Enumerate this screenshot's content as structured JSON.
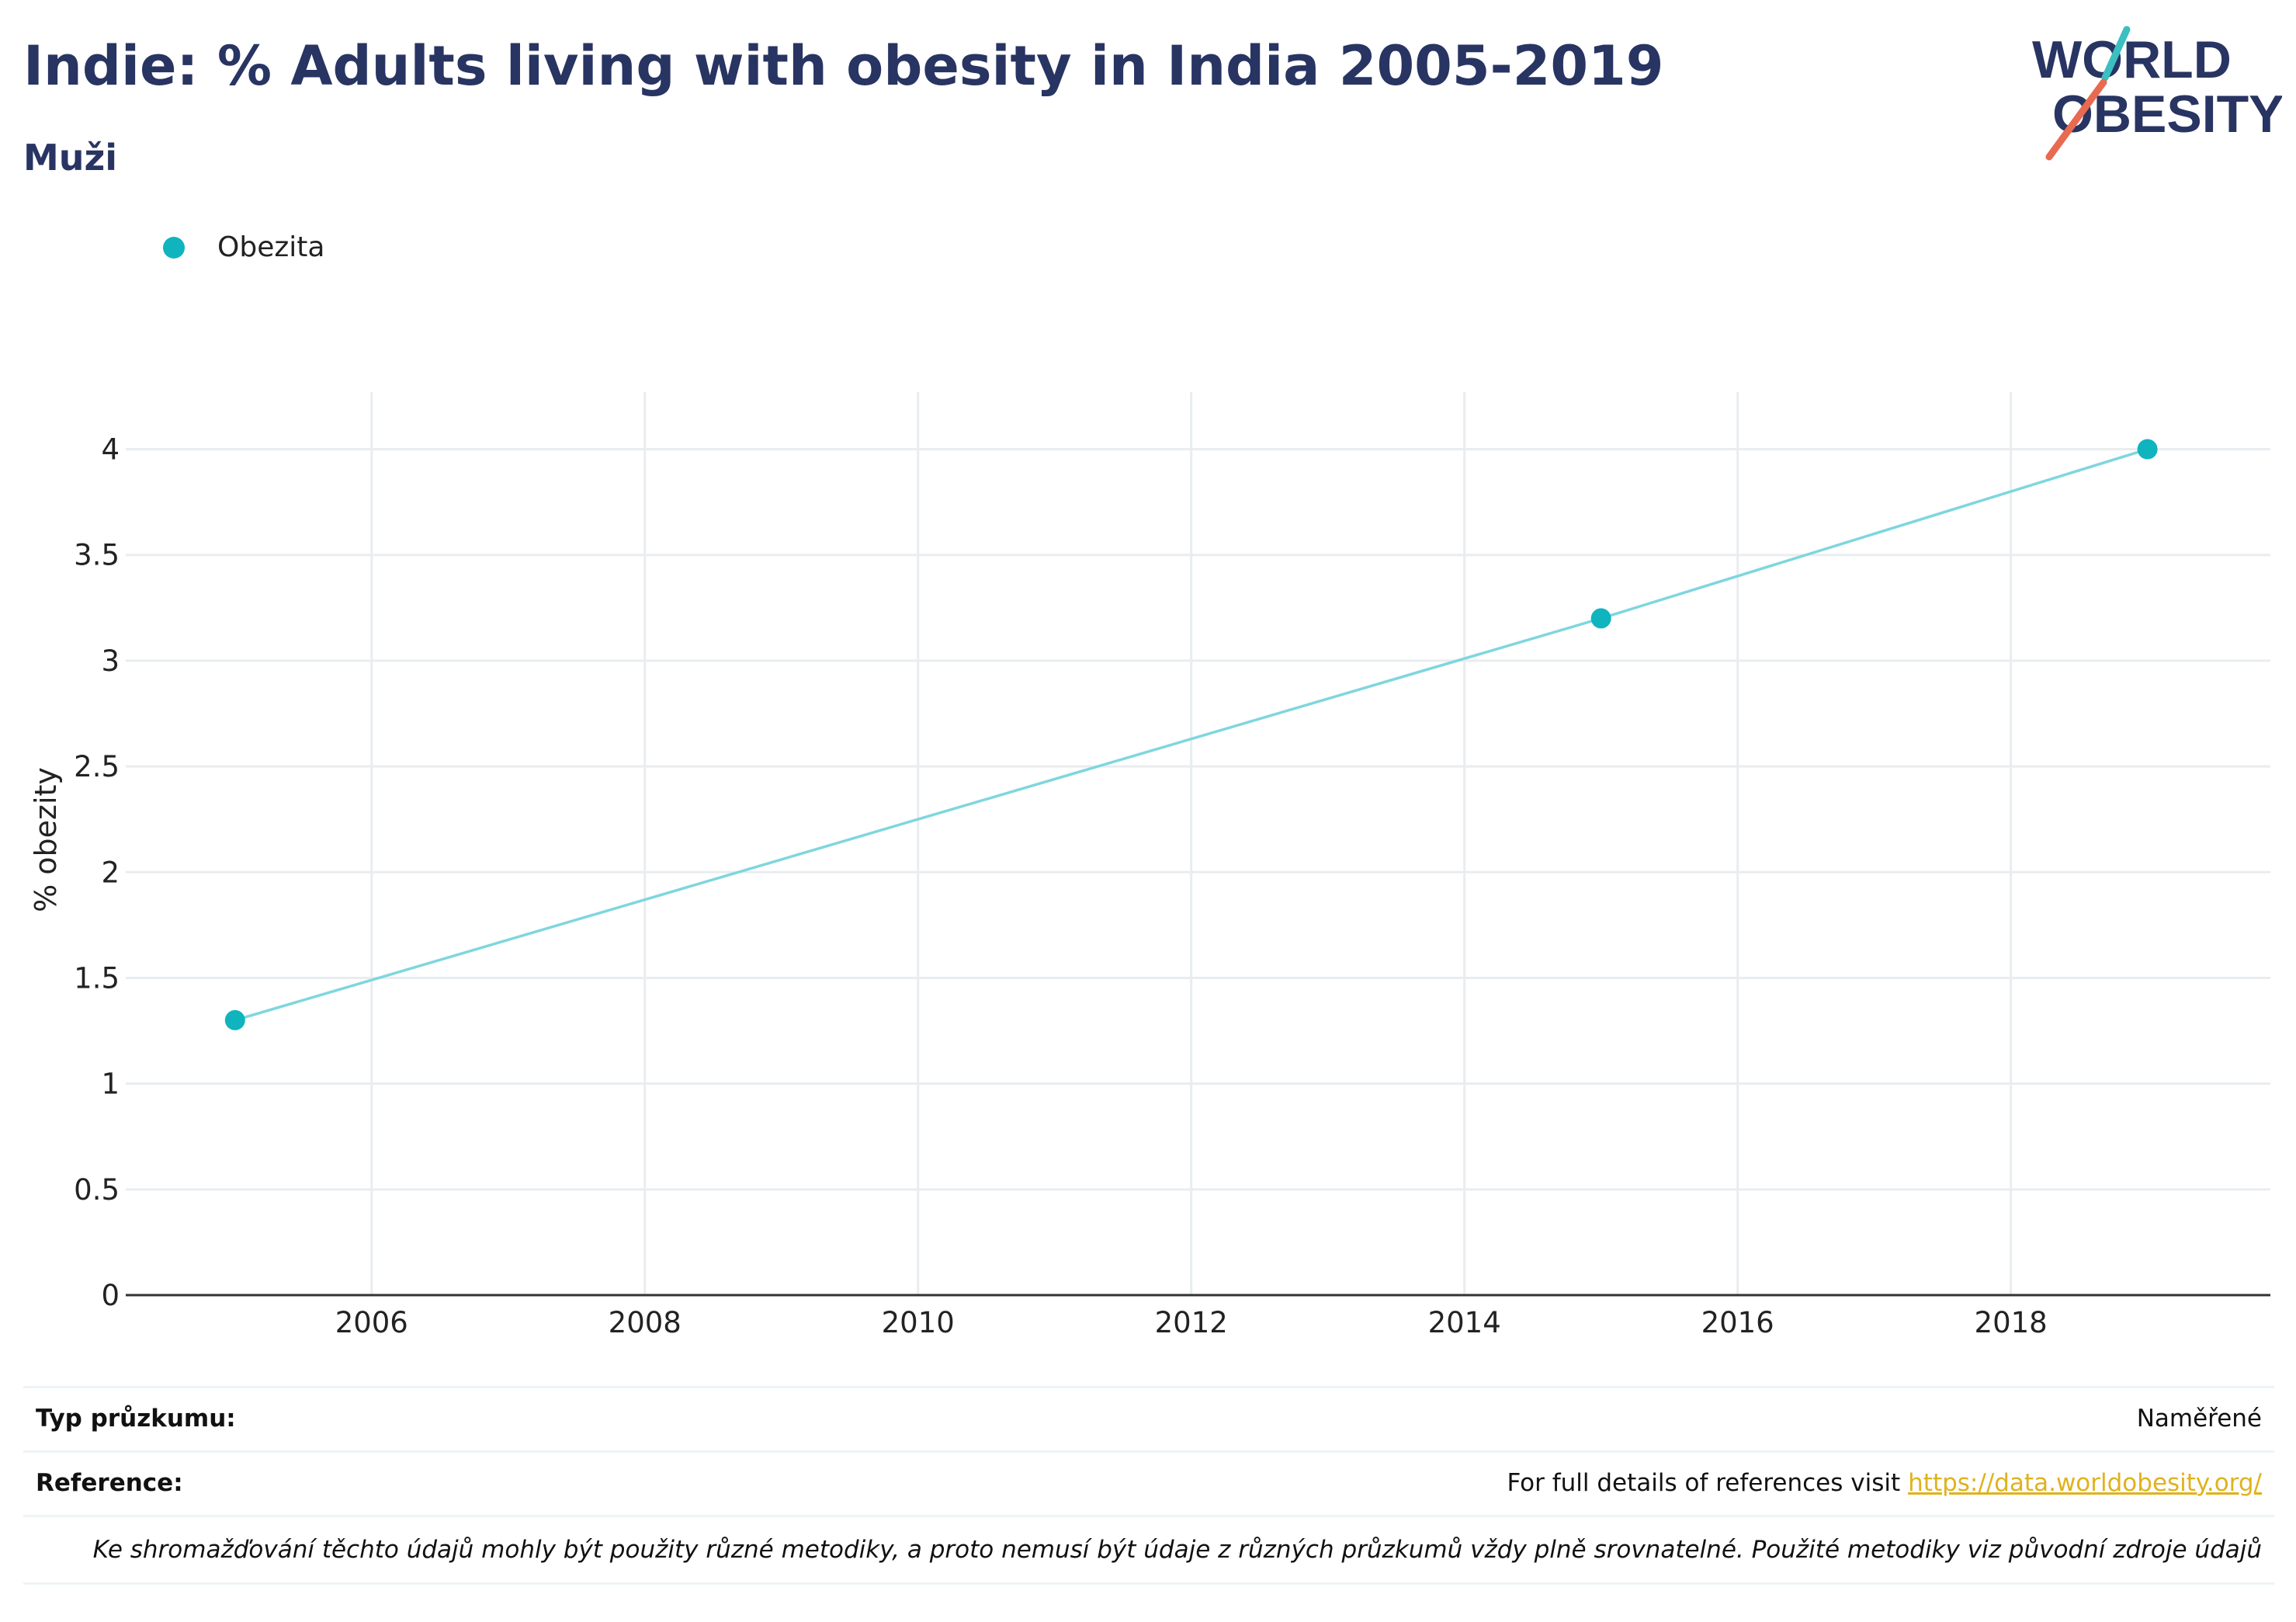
{
  "header": {
    "title": "Indie: % Adults living with obesity in India 2005-2019",
    "subtitle": "Muži"
  },
  "logo": {
    "line1": "WORLD",
    "line2": "OBESITY",
    "colors": {
      "text": "#283462",
      "slash_teal": "#3bbfc0",
      "slash_orange": "#e86a50"
    }
  },
  "legend": {
    "label": "Obezita",
    "color": "#0fb4bf"
  },
  "chart_data": {
    "type": "line",
    "title": "",
    "xlabel": "",
    "ylabel": "% obezity",
    "x_ticks": [
      2006,
      2008,
      2010,
      2012,
      2014,
      2016,
      2018
    ],
    "y_ticks": [
      0,
      0.5,
      1,
      1.5,
      2,
      2.5,
      3,
      3.5,
      4
    ],
    "xlim": [
      2004.2,
      2019.9
    ],
    "ylim": [
      0,
      4.27
    ],
    "grid": true,
    "legend_position": "top-left",
    "series": [
      {
        "name": "Obezita",
        "color": "#0fb4bf",
        "line_color": "#7fd6de",
        "points": [
          {
            "x": 2005,
            "y": 1.3
          },
          {
            "x": 2015,
            "y": 3.2
          },
          {
            "x": 2019,
            "y": 4.0
          }
        ]
      }
    ]
  },
  "info": {
    "survey_type_label": "Typ průzkumu:",
    "survey_type_value": "Naměřené",
    "reference_label": "Reference:",
    "reference_text": "For full details of references visit",
    "reference_link": "https://data.worldobesity.org/",
    "note": "Ke shromažďování těchto údajů mohly být použity různé metodiky, a proto nemusí být údaje z různých průzkumů vždy plně srovnatelné. Použité metodiky viz původní zdroje údajů"
  }
}
